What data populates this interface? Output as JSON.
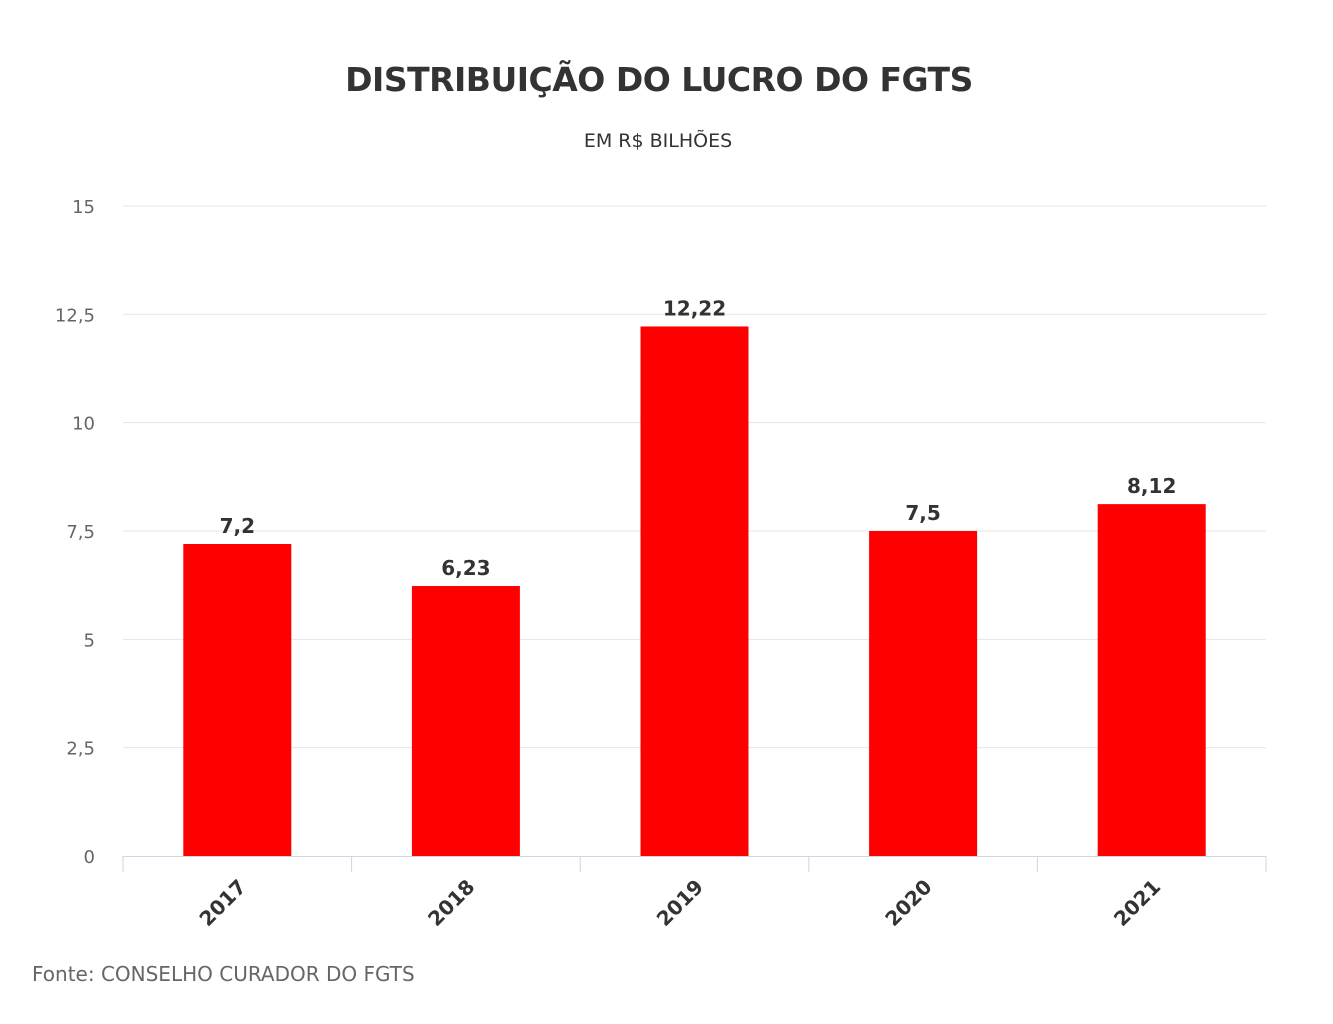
{
  "title": "DISTRIBUIÇÃO DO LUCRO DO FGTS",
  "subtitle": "EM R$ BILHÕES",
  "source": "Fonte: CONSELHO CURADOR DO FGTS",
  "chart_data": {
    "type": "bar",
    "title": "DISTRIBUIÇÃO DO LUCRO DO FGTS",
    "subtitle": "EM R$ BILHÕES",
    "categories": [
      "2017",
      "2018",
      "2019",
      "2020",
      "2021"
    ],
    "values": [
      7.2,
      6.23,
      12.22,
      7.5,
      8.12
    ],
    "value_labels": [
      "7,2",
      "6,23",
      "12,22",
      "7,5",
      "8,12"
    ],
    "yticks": [
      0,
      2.5,
      5,
      7.5,
      10,
      12.5,
      15
    ],
    "ytick_labels": [
      "0",
      "2,5",
      "5",
      "7,5",
      "10",
      "12,5",
      "15"
    ],
    "ylim": [
      0,
      15
    ],
    "grid": true,
    "legend": "none",
    "bar_color": "#ff0000"
  }
}
